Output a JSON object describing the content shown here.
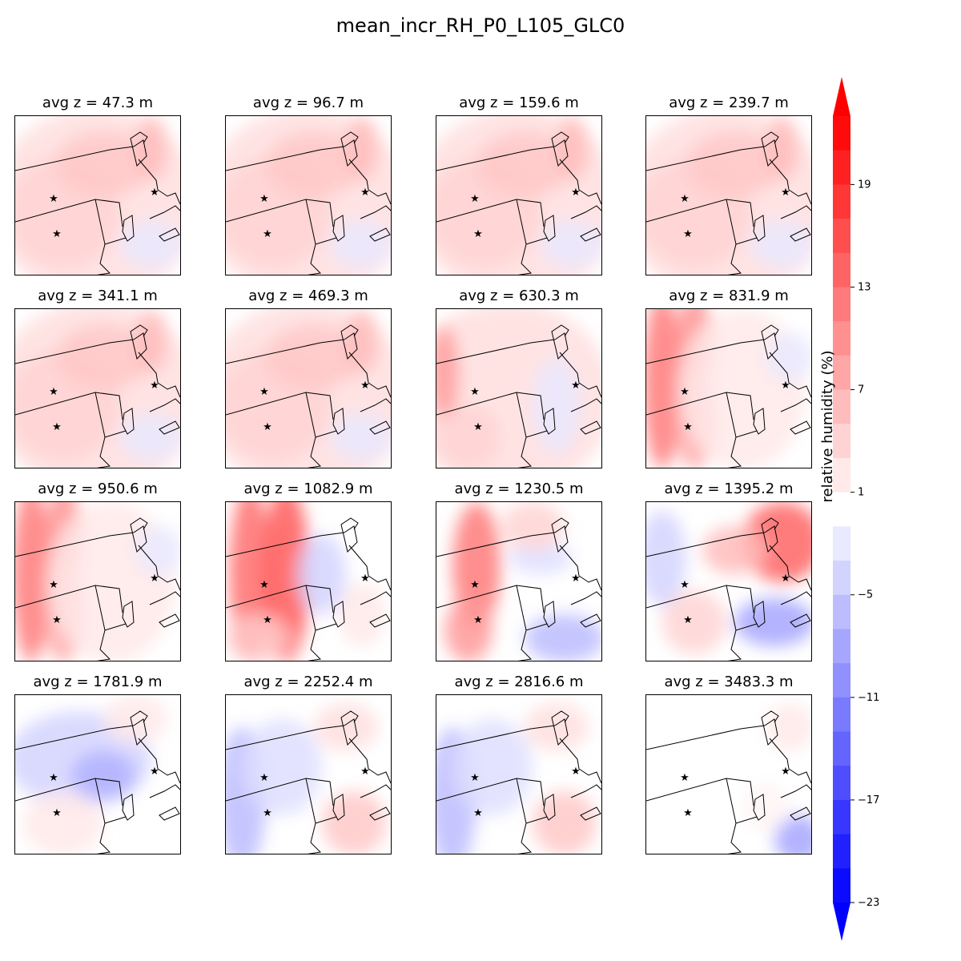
{
  "title": "mean_incr_RH_P0_L105_GLC0",
  "colorbar": {
    "label": "relative humidity (%)",
    "ticks": [
      "19",
      "13",
      "7",
      "1",
      "−5",
      "−11",
      "−17",
      "−23"
    ],
    "tick_values": [
      19,
      13,
      7,
      1,
      -5,
      -11,
      -17,
      -23
    ],
    "min": -23,
    "max": 23,
    "extend": "both",
    "colormap": "bwr",
    "negative_color": "#0000ff",
    "positive_color": "#ff0000",
    "neutral_color": "#ffffff"
  },
  "panels": [
    {
      "title": "avg z = 47.3 m",
      "z": 47.3,
      "pattern": "light-pink"
    },
    {
      "title": "avg z = 96.7 m",
      "z": 96.7,
      "pattern": "light-pink"
    },
    {
      "title": "avg z = 159.6 m",
      "z": 159.6,
      "pattern": "light-pink"
    },
    {
      "title": "avg z = 239.7 m",
      "z": 239.7,
      "pattern": "light-pink"
    },
    {
      "title": "avg z = 341.1 m",
      "z": 341.1,
      "pattern": "light-pink"
    },
    {
      "title": "avg z = 469.3 m",
      "z": 469.3,
      "pattern": "light-pink"
    },
    {
      "title": "avg z = 630.3 m",
      "z": 630.3,
      "pattern": "pink-with-red-west"
    },
    {
      "title": "avg z = 831.9 m",
      "z": 831.9,
      "pattern": "red-west-bands"
    },
    {
      "title": "avg z = 950.6 m",
      "z": 950.6,
      "pattern": "red-west-bands"
    },
    {
      "title": "avg z = 1082.9 m",
      "z": 1082.9,
      "pattern": "strong-red-west"
    },
    {
      "title": "avg z = 1230.5 m",
      "z": 1230.5,
      "pattern": "red-with-blue-southeast"
    },
    {
      "title": "avg z = 1395.2 m",
      "z": 1395.2,
      "pattern": "red-northeast-blue-southeast"
    },
    {
      "title": "avg z = 1781.9 m",
      "z": 1781.9,
      "pattern": "light-blue"
    },
    {
      "title": "avg z = 2252.4 m",
      "z": 2252.4,
      "pattern": "blue-west-pink-east"
    },
    {
      "title": "avg z = 2816.6 m",
      "z": 2816.6,
      "pattern": "blue-west-pink-east"
    },
    {
      "title": "avg z = 3483.3 m",
      "z": 3483.3,
      "pattern": "mostly-neutral"
    }
  ],
  "chart_data": {
    "type": "heatmap",
    "title": "mean_incr_RH_P0_L105_GLC0",
    "layout": "4x4 grid of map panels",
    "colorbar_label": "relative humidity (%)",
    "colorbar_ticks": [
      19,
      13,
      7,
      1,
      -5,
      -11,
      -17,
      -23
    ],
    "vmin": -23,
    "vmax": 23,
    "series": [
      {
        "name": "avg z = 47.3 m",
        "z_m": 47.3
      },
      {
        "name": "avg z = 96.7 m",
        "z_m": 96.7
      },
      {
        "name": "avg z = 159.6 m",
        "z_m": 159.6
      },
      {
        "name": "avg z = 239.7 m",
        "z_m": 239.7
      },
      {
        "name": "avg z = 341.1 m",
        "z_m": 341.1
      },
      {
        "name": "avg z = 469.3 m",
        "z_m": 469.3
      },
      {
        "name": "avg z = 630.3 m",
        "z_m": 630.3
      },
      {
        "name": "avg z = 831.9 m",
        "z_m": 831.9
      },
      {
        "name": "avg z = 950.6 m",
        "z_m": 950.6
      },
      {
        "name": "avg z = 1082.9 m",
        "z_m": 1082.9
      },
      {
        "name": "avg z = 1230.5 m",
        "z_m": 1230.5
      },
      {
        "name": "avg z = 1395.2 m",
        "z_m": 1395.2
      },
      {
        "name": "avg z = 1781.9 m",
        "z_m": 1781.9
      },
      {
        "name": "avg z = 2252.4 m",
        "z_m": 2252.4
      },
      {
        "name": "avg z = 2816.6 m",
        "z_m": 2816.6
      },
      {
        "name": "avg z = 3483.3 m",
        "z_m": 3483.3
      }
    ]
  }
}
